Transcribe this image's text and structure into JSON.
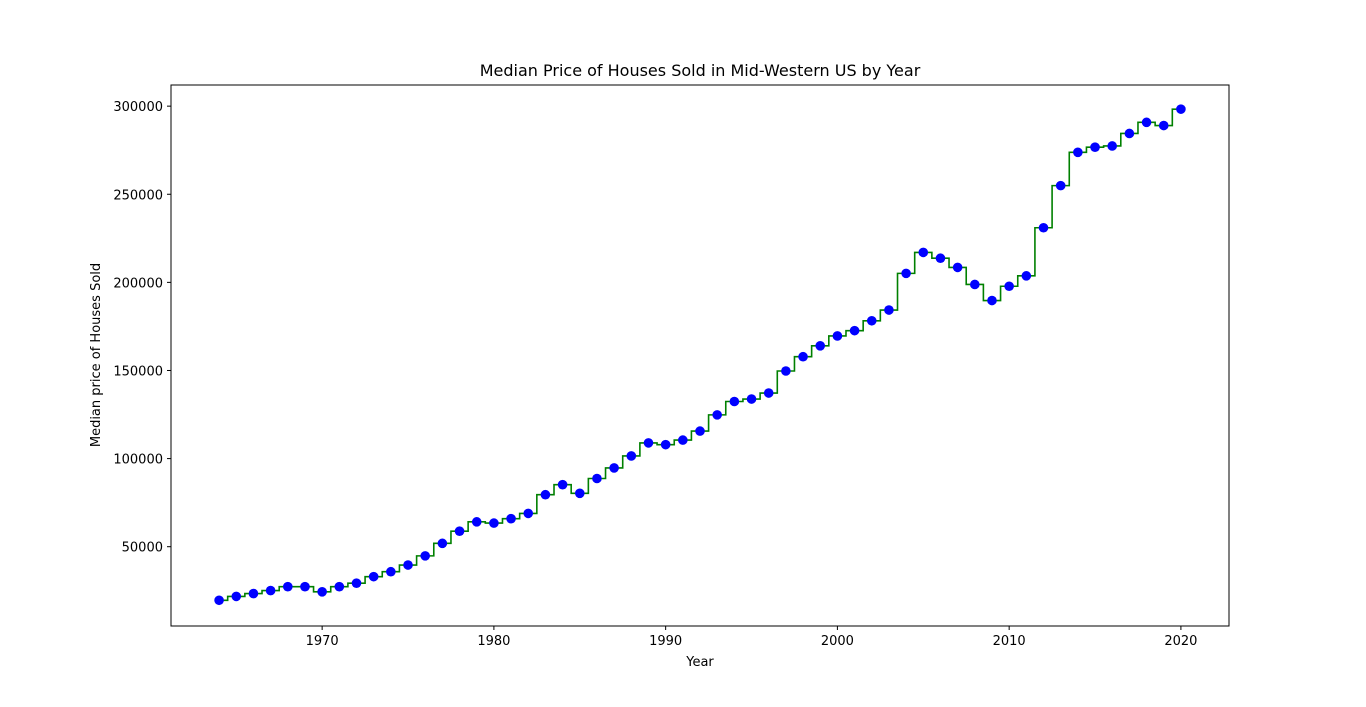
{
  "chart_data": {
    "type": "line",
    "title": "Median Price of Houses Sold in Mid-Western US by Year",
    "xlabel": "Year",
    "ylabel": "Median price of Houses Sold",
    "xlim": [
      1961.2,
      2022.8
    ],
    "ylim": [
      5000,
      312000
    ],
    "xticks": [
      1970,
      1980,
      1990,
      2000,
      2010,
      2020
    ],
    "yticks": [
      50000,
      100000,
      150000,
      200000,
      250000,
      300000
    ],
    "grid": false,
    "legend": "none",
    "x": [
      1964,
      1965,
      1966,
      1967,
      1968,
      1969,
      1970,
      1971,
      1972,
      1973,
      1974,
      1975,
      1976,
      1977,
      1978,
      1979,
      1980,
      1981,
      1982,
      1983,
      1984,
      1985,
      1986,
      1987,
      1988,
      1989,
      1990,
      1991,
      1992,
      1993,
      1994,
      1995,
      1996,
      1997,
      1998,
      1999,
      2000,
      2001,
      2002,
      2003,
      2004,
      2005,
      2006,
      2007,
      2008,
      2009,
      2010,
      2011,
      2012,
      2013,
      2014,
      2015,
      2016,
      2017,
      2018,
      2019,
      2020
    ],
    "series": [
      {
        "style": "points",
        "color": "#0000ff",
        "values": [
          19600,
          21800,
          23400,
          25100,
          27300,
          27300,
          24400,
          27300,
          29300,
          33000,
          35800,
          39600,
          44800,
          51900,
          58800,
          64100,
          63400,
          65900,
          68900,
          79500,
          85200,
          80300,
          88700,
          94700,
          101500,
          108900,
          107900,
          110500,
          115600,
          124800,
          132400,
          133800,
          137200,
          149700,
          157800,
          164000,
          169600,
          172600,
          178200,
          184300,
          205100,
          217000,
          213700,
          208500,
          198800,
          189700,
          197800,
          203700,
          231000,
          254900,
          273800,
          276700,
          277400,
          284500,
          290800,
          289000,
          298300
        ]
      },
      {
        "style": "step",
        "color": "#008000",
        "values": [
          19600,
          21800,
          23400,
          25100,
          27300,
          27300,
          24400,
          27300,
          29300,
          33000,
          35800,
          39600,
          44800,
          51900,
          58800,
          64100,
          63400,
          65900,
          68900,
          79500,
          85200,
          80300,
          88700,
          94700,
          101500,
          108900,
          107900,
          110500,
          115600,
          124800,
          132400,
          133800,
          137200,
          149700,
          157800,
          164000,
          169600,
          172600,
          178200,
          184300,
          205100,
          217000,
          213700,
          208500,
          198800,
          189700,
          197800,
          203700,
          231000,
          254900,
          273800,
          276700,
          277400,
          284500,
          290800,
          289000,
          298300
        ]
      }
    ]
  }
}
